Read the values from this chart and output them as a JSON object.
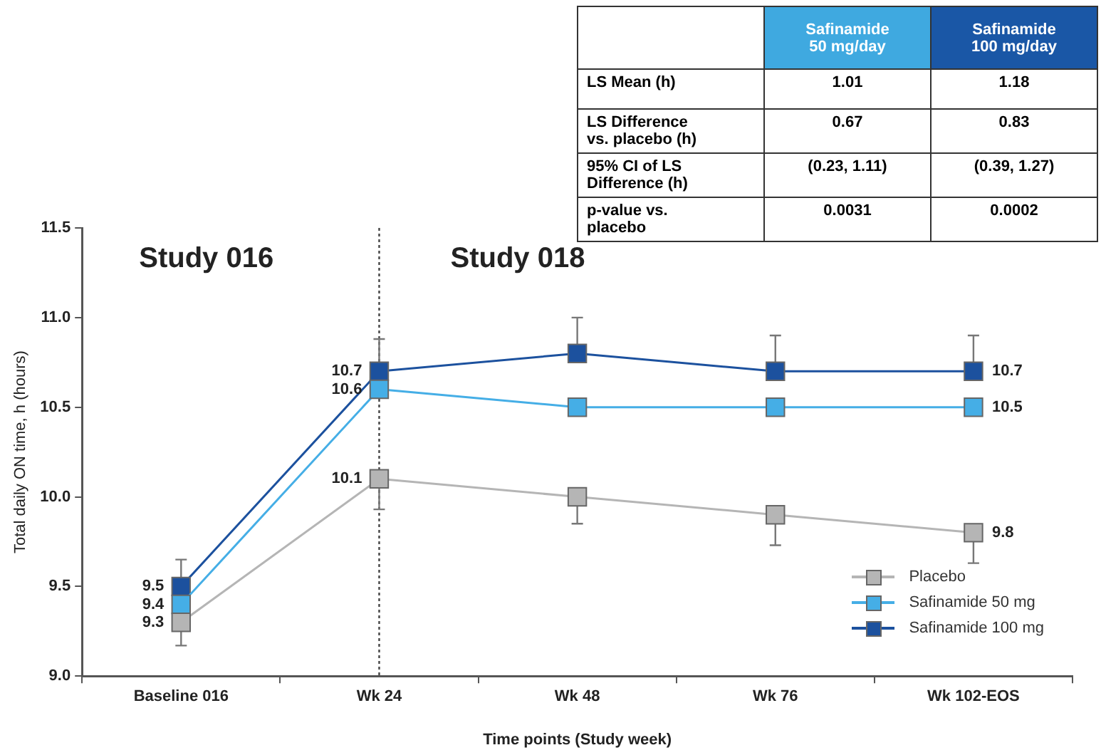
{
  "chart_data": [
    {
      "type": "line",
      "xlabel": "Time points (Study week)",
      "ylabel": "Total daily ON time, h (hours)",
      "categories": [
        "Baseline 016",
        "Wk 24",
        "Wk 48",
        "Wk 76",
        "Wk 102-EOS"
      ],
      "series": [
        {
          "name": "Placebo",
          "color": "#b5b5b5",
          "values": [
            9.3,
            10.1,
            10.0,
            9.9,
            9.8
          ],
          "errors": [
            [
              9.17,
              9.3
            ],
            [
              9.93,
              10.1
            ],
            [
              9.85,
              10.0
            ],
            [
              9.73,
              9.9
            ],
            [
              9.63,
              9.8
            ]
          ],
          "value_labels": [
            "9.3",
            "10.1",
            null,
            null,
            "9.8"
          ]
        },
        {
          "name": "Safinamide 50 mg",
          "color": "#45aee6",
          "values": [
            9.4,
            10.6,
            10.5,
            10.5,
            10.5
          ],
          "value_labels": [
            "9.4",
            "10.6",
            null,
            null,
            "10.5"
          ]
        },
        {
          "name": "Safinamide 100 mg",
          "color": "#1c519e",
          "values": [
            9.5,
            10.7,
            10.8,
            10.7,
            10.7
          ],
          "errors": [
            [
              9.5,
              9.65
            ],
            [
              10.7,
              10.88
            ],
            [
              10.8,
              11.0
            ],
            [
              10.7,
              10.9
            ],
            [
              10.7,
              10.9
            ]
          ],
          "value_labels": [
            "9.5",
            "10.7",
            null,
            null,
            "10.7"
          ]
        }
      ],
      "ylim": [
        9,
        11.5
      ],
      "yticks": [
        {
          "value": 9,
          "label": "9.0"
        },
        {
          "value": 9.5,
          "label": "9.5"
        },
        {
          "value": 10,
          "label": "10.0"
        },
        {
          "value": 10.5,
          "label": "10.5"
        },
        {
          "value": 11,
          "label": "11.0"
        },
        {
          "value": 11.5,
          "label": "11.5"
        }
      ],
      "ref_lines": [
        {
          "axis": "x",
          "value": "Wk 24",
          "line_style": "dotted",
          "color": "#444444"
        }
      ],
      "annotations": [
        "Study 016",
        "Study 018"
      ],
      "marker": "square",
      "grid": false,
      "legend": "bottom right"
    },
    {
      "type": "other",
      "categories": [
        "Safinamide\n50 mg/day",
        "Safinamide\n100 mg/day"
      ],
      "colors": [
        "#3fa9e0",
        "#1a57a6"
      ],
      "y_categories": [
        "LS Mean (h)",
        "LS Difference\nvs. placebo (h)",
        "95% CI of LS\nDifference (h)",
        "p-value vs.\nplacebo"
      ],
      "cell_labels": [
        [
          "1.01",
          "1.18"
        ],
        [
          "0.67",
          "0.83"
        ],
        [
          "(0.23, 1.11)",
          "(0.39, 1.27)"
        ],
        [
          "0.0031",
          "0.0002"
        ]
      ]
    }
  ]
}
